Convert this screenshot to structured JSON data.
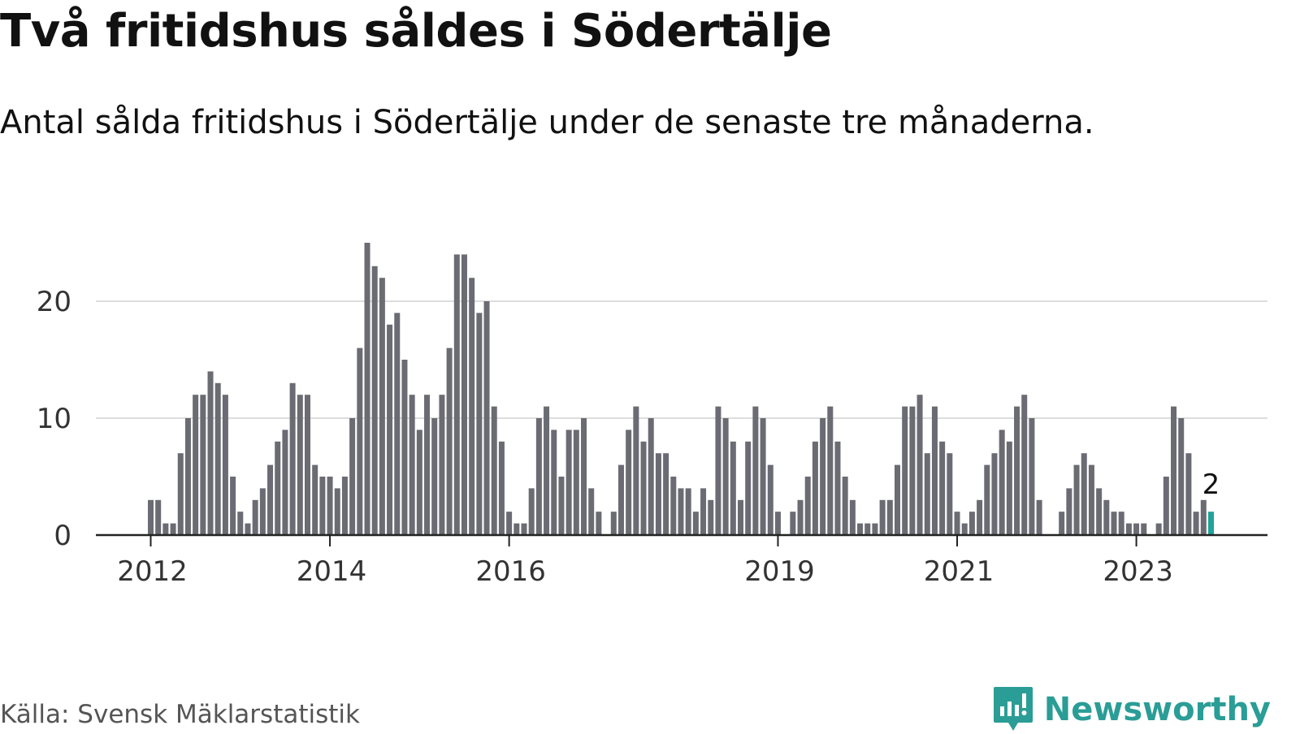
{
  "header": {
    "title": "Två fritidshus såldes i Södertälje",
    "subtitle": "Antal sålda fritidshus i Södertälje under de senaste tre månaderna."
  },
  "footer": {
    "source": "Källa: Svensk Mäklarstatistik",
    "brand": "Newsworthy",
    "brand_icon": "newsworthy-logo-icon"
  },
  "colors": {
    "bar": "#6b6b73",
    "highlight": "#1fa39a",
    "brand": "#2a9d96",
    "grid": "#dddddd",
    "axis": "#222222"
  },
  "chart_data": {
    "type": "bar",
    "title": "Två fritidshus såldes i Södertälje",
    "xlabel": "",
    "ylabel": "",
    "ylim": [
      0,
      25
    ],
    "yticks": [
      0,
      10,
      20
    ],
    "grid": true,
    "start": "2012-01",
    "x_ticks": [
      {
        "label": "2012",
        "month_index": 0
      },
      {
        "label": "2014",
        "month_index": 24
      },
      {
        "label": "2016",
        "month_index": 48
      },
      {
        "label": "2019",
        "month_index": 84
      },
      {
        "label": "2021",
        "month_index": 108
      },
      {
        "label": "2023",
        "month_index": 132
      }
    ],
    "values": [
      3,
      3,
      1,
      1,
      7,
      10,
      12,
      12,
      14,
      13,
      12,
      5,
      2,
      1,
      3,
      4,
      6,
      8,
      9,
      13,
      12,
      12,
      6,
      5,
      5,
      4,
      5,
      10,
      16,
      25,
      23,
      22,
      18,
      19,
      15,
      12,
      9,
      12,
      10,
      12,
      16,
      24,
      24,
      22,
      19,
      20,
      11,
      8,
      2,
      1,
      1,
      4,
      10,
      11,
      9,
      5,
      9,
      9,
      10,
      4,
      2,
      0,
      2,
      6,
      9,
      11,
      8,
      10,
      7,
      7,
      5,
      4,
      4,
      2,
      4,
      3,
      11,
      10,
      8,
      3,
      8,
      11,
      10,
      6,
      2,
      0,
      2,
      3,
      5,
      8,
      10,
      11,
      8,
      5,
      3,
      1,
      1,
      1,
      3,
      3,
      6,
      11,
      11,
      12,
      7,
      11,
      8,
      7,
      2,
      1,
      2,
      3,
      6,
      7,
      9,
      8,
      11,
      12,
      10,
      3,
      0,
      0,
      2,
      4,
      6,
      7,
      6,
      4,
      3,
      2,
      2,
      1,
      1,
      1,
      0,
      1,
      5,
      11,
      10,
      7,
      2,
      3,
      2
    ],
    "highlight_index": 142,
    "annotation": "2"
  }
}
